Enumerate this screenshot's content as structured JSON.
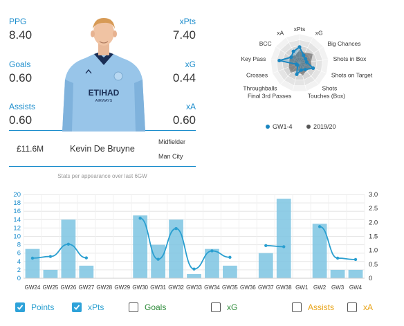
{
  "stats": {
    "ppg_label": "PPG",
    "ppg_value": "8.40",
    "xpts_label": "xPts",
    "xpts_value": "7.40",
    "goals_label": "Goals",
    "goals_value": "0.60",
    "xg_label": "xG",
    "xg_value": "0.44",
    "assists_label": "Assists",
    "assists_value": "0.60",
    "xa_label": "xA",
    "xa_value": "0.60"
  },
  "player": {
    "price": "£11.6M",
    "name": "Kevin De Bruyne",
    "position": "Midfielder",
    "club": "Man City",
    "shirt_sponsor": "ETIHAD",
    "shirt_sponsor_sub": "AIRWAYS",
    "note": "Stats per appearance over last 6GW"
  },
  "radar": {
    "axes": [
      "xPts",
      "xG",
      "Big Chances",
      "Shots in Box",
      "Shots on Target",
      "Shots",
      "Touches (Box)",
      "Final 3rd Passes",
      "Throughballs",
      "Crosses",
      "Key Pass",
      "BCC",
      "xA"
    ],
    "series": [
      {
        "name": "GW1-4",
        "color": "#1a86c0",
        "values": [
          0.55,
          0.3,
          0.25,
          0.25,
          0.5,
          0.3,
          0.25,
          0.4,
          0.1,
          0.12,
          0.7,
          0.35,
          0.45
        ]
      },
      {
        "name": "2019/20",
        "color": "#555555",
        "values": [
          0.45,
          0.4,
          0.55,
          0.4,
          0.45,
          0.35,
          0.45,
          0.25,
          0.45,
          0.4,
          0.35,
          0.4,
          0.3
        ]
      }
    ]
  },
  "chart_data": {
    "type": "bar",
    "categories": [
      "GW24",
      "GW25",
      "GW26",
      "GW27",
      "GW28",
      "GW29",
      "GW30",
      "GW31",
      "GW32",
      "GW33",
      "GW34",
      "GW35",
      "GW36",
      "GW37",
      "GW38",
      "GW1",
      "GW2",
      "GW3",
      "GW4"
    ],
    "series": [
      {
        "name": "Points",
        "values": [
          7,
          2,
          14,
          3,
          null,
          null,
          15,
          8,
          14,
          1,
          7,
          3,
          null,
          6,
          19,
          null,
          13,
          2,
          2
        ],
        "color": "#7cc4e2"
      },
      {
        "name": "xPts",
        "values": [
          0.72,
          0.78,
          1.22,
          0.73,
          null,
          null,
          2.15,
          0.68,
          1.78,
          0.33,
          0.98,
          0.75,
          null,
          1.17,
          1.13,
          null,
          1.85,
          0.72,
          0.67
        ],
        "color": "#2a9fd0"
      }
    ],
    "ylim": [
      0,
      20
    ],
    "y_ticks": [
      "0",
      "2",
      "4",
      "6",
      "8",
      "10",
      "12",
      "14",
      "16",
      "18",
      "20"
    ],
    "y2lim": [
      0,
      3
    ],
    "y2_ticks": [
      "0",
      "0.5",
      "1.0",
      "1.5",
      "2.0",
      "2.5",
      "3.0"
    ]
  },
  "toggles": [
    {
      "label": "Points",
      "checked": true,
      "color": "#2a9fd0"
    },
    {
      "label": "xPts",
      "checked": true,
      "color": "#2a9fd0"
    },
    {
      "label": "Goals",
      "checked": false,
      "color": "#2e8b3a"
    },
    {
      "label": "xG",
      "checked": false,
      "color": "#2e8b3a"
    },
    {
      "label": "Assists",
      "checked": false,
      "color": "#e8a317"
    },
    {
      "label": "xA",
      "checked": false,
      "color": "#e8a317"
    }
  ]
}
